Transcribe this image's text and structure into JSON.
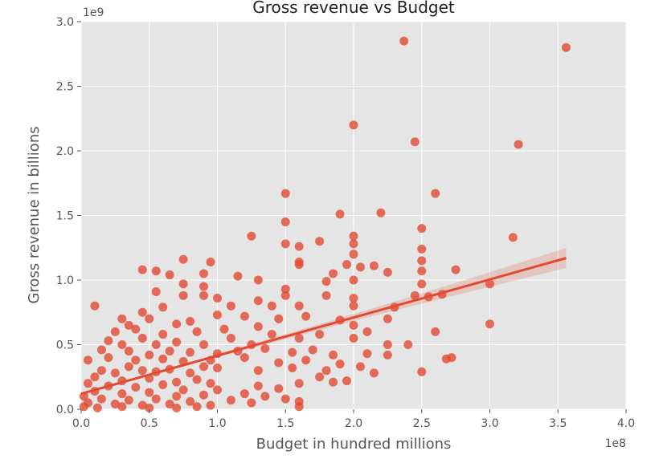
{
  "chart_data": {
    "type": "scatter",
    "title": "Gross revenue vs Budget",
    "xlabel": "Budget in hundred millions",
    "ylabel": "Gross revenue in billions",
    "x_offset_label": "1e8",
    "y_offset_label": "1e9",
    "xlim": [
      0,
      4.0
    ],
    "ylim": [
      0,
      3.0
    ],
    "xticks": [
      "0.0",
      "0.5",
      "1.0",
      "1.5",
      "2.0",
      "2.5",
      "3.0",
      "3.5",
      "4.0"
    ],
    "yticks": [
      "0.0",
      "0.5",
      "1.0",
      "1.5",
      "2.0",
      "2.5",
      "3.0"
    ],
    "grid": true,
    "style": "ggplot",
    "colors": {
      "marker": "#e24a33",
      "background": "#e5e5e5",
      "grid": "#ffffff"
    },
    "series": [
      {
        "points": [
          [
            2.37,
            2.85
          ],
          [
            3.56,
            2.8
          ],
          [
            2.0,
            2.2
          ],
          [
            2.45,
            2.07
          ],
          [
            3.21,
            2.05
          ],
          [
            1.5,
            1.67
          ],
          [
            2.6,
            1.67
          ],
          [
            1.9,
            1.51
          ],
          [
            2.2,
            1.52
          ],
          [
            1.5,
            1.45
          ],
          [
            1.75,
            1.3
          ],
          [
            1.25,
            1.34
          ],
          [
            2.0,
            1.34
          ],
          [
            2.5,
            1.4
          ],
          [
            3.17,
            1.33
          ],
          [
            1.5,
            1.28
          ],
          [
            1.6,
            1.26
          ],
          [
            2.0,
            1.28
          ],
          [
            2.5,
            1.24
          ],
          [
            1.6,
            1.14
          ],
          [
            1.6,
            1.12
          ],
          [
            2.0,
            1.2
          ],
          [
            2.5,
            1.15
          ],
          [
            0.75,
            1.16
          ],
          [
            0.95,
            1.14
          ],
          [
            0.45,
            1.08
          ],
          [
            0.55,
            1.07
          ],
          [
            0.65,
            1.04
          ],
          [
            0.9,
            1.05
          ],
          [
            2.25,
            1.06
          ],
          [
            2.75,
            1.08
          ],
          [
            1.15,
            1.03
          ],
          [
            1.3,
            1.0
          ],
          [
            1.85,
            1.05
          ],
          [
            1.95,
            1.12
          ],
          [
            2.05,
            1.1
          ],
          [
            2.15,
            1.11
          ],
          [
            2.5,
            1.07
          ],
          [
            1.5,
            0.93
          ],
          [
            1.8,
            0.99
          ],
          [
            2.0,
            1.0
          ],
          [
            3.0,
            0.97
          ],
          [
            0.75,
            0.97
          ],
          [
            0.9,
            0.95
          ],
          [
            0.9,
            0.88
          ],
          [
            1.0,
            0.86
          ],
          [
            0.55,
            0.91
          ],
          [
            0.1,
            0.8
          ],
          [
            0.45,
            0.75
          ],
          [
            0.6,
            0.79
          ],
          [
            0.75,
            0.88
          ],
          [
            1.1,
            0.8
          ],
          [
            1.3,
            0.84
          ],
          [
            1.5,
            0.88
          ],
          [
            2.0,
            0.86
          ],
          [
            2.5,
            0.97
          ],
          [
            2.45,
            0.88
          ],
          [
            2.55,
            0.87
          ],
          [
            2.65,
            0.89
          ],
          [
            2.3,
            0.79
          ],
          [
            1.2,
            0.72
          ],
          [
            1.4,
            0.8
          ],
          [
            1.6,
            0.8
          ],
          [
            1.8,
            0.88
          ],
          [
            2.0,
            0.8
          ],
          [
            0.3,
            0.7
          ],
          [
            0.35,
            0.65
          ],
          [
            0.5,
            0.7
          ],
          [
            0.7,
            0.66
          ],
          [
            0.8,
            0.68
          ],
          [
            1.0,
            0.73
          ],
          [
            2.25,
            0.7
          ],
          [
            2.6,
            0.6
          ],
          [
            3.0,
            0.66
          ],
          [
            0.25,
            0.6
          ],
          [
            0.4,
            0.62
          ],
          [
            0.6,
            0.58
          ],
          [
            0.85,
            0.6
          ],
          [
            1.05,
            0.62
          ],
          [
            1.3,
            0.64
          ],
          [
            1.45,
            0.7
          ],
          [
            1.65,
            0.72
          ],
          [
            1.9,
            0.69
          ],
          [
            2.0,
            0.65
          ],
          [
            2.1,
            0.6
          ],
          [
            0.2,
            0.53
          ],
          [
            0.3,
            0.5
          ],
          [
            0.45,
            0.55
          ],
          [
            0.55,
            0.5
          ],
          [
            0.7,
            0.52
          ],
          [
            0.9,
            0.5
          ],
          [
            1.1,
            0.55
          ],
          [
            1.25,
            0.5
          ],
          [
            1.4,
            0.58
          ],
          [
            1.6,
            0.55
          ],
          [
            1.75,
            0.58
          ],
          [
            2.0,
            0.55
          ],
          [
            2.25,
            0.5
          ],
          [
            2.25,
            0.42
          ],
          [
            2.72,
            0.4
          ],
          [
            2.68,
            0.39
          ],
          [
            0.15,
            0.46
          ],
          [
            0.35,
            0.45
          ],
          [
            0.5,
            0.42
          ],
          [
            0.65,
            0.45
          ],
          [
            0.8,
            0.44
          ],
          [
            1.0,
            0.43
          ],
          [
            1.15,
            0.45
          ],
          [
            1.35,
            0.47
          ],
          [
            1.55,
            0.44
          ],
          [
            1.7,
            0.46
          ],
          [
            1.85,
            0.42
          ],
          [
            2.1,
            0.43
          ],
          [
            2.4,
            0.5
          ],
          [
            0.05,
            0.38
          ],
          [
            0.2,
            0.4
          ],
          [
            0.4,
            0.38
          ],
          [
            0.6,
            0.39
          ],
          [
            0.75,
            0.37
          ],
          [
            0.95,
            0.38
          ],
          [
            1.2,
            0.4
          ],
          [
            1.45,
            0.36
          ],
          [
            1.65,
            0.38
          ],
          [
            1.9,
            0.35
          ],
          [
            2.05,
            0.33
          ],
          [
            2.15,
            0.28
          ],
          [
            2.5,
            0.29
          ],
          [
            1.0,
            0.32
          ],
          [
            1.3,
            0.3
          ],
          [
            1.55,
            0.32
          ],
          [
            1.8,
            0.3
          ],
          [
            1.95,
            0.22
          ],
          [
            1.85,
            0.21
          ],
          [
            1.75,
            0.25
          ],
          [
            1.6,
            0.2
          ],
          [
            1.45,
            0.16
          ],
          [
            1.3,
            0.18
          ],
          [
            1.2,
            0.12
          ],
          [
            1.0,
            0.15
          ],
          [
            1.35,
            0.1
          ],
          [
            1.5,
            0.08
          ],
          [
            1.6,
            0.06
          ],
          [
            1.6,
            0.02
          ],
          [
            1.25,
            0.05
          ],
          [
            1.1,
            0.07
          ],
          [
            0.15,
            0.3
          ],
          [
            0.25,
            0.28
          ],
          [
            0.35,
            0.33
          ],
          [
            0.45,
            0.3
          ],
          [
            0.55,
            0.29
          ],
          [
            0.65,
            0.31
          ],
          [
            0.8,
            0.28
          ],
          [
            0.9,
            0.33
          ],
          [
            0.1,
            0.25
          ],
          [
            0.3,
            0.22
          ],
          [
            0.5,
            0.24
          ],
          [
            0.7,
            0.21
          ],
          [
            0.85,
            0.23
          ],
          [
            0.05,
            0.2
          ],
          [
            0.2,
            0.18
          ],
          [
            0.4,
            0.17
          ],
          [
            0.6,
            0.19
          ],
          [
            0.75,
            0.15
          ],
          [
            0.95,
            0.2
          ],
          [
            0.1,
            0.14
          ],
          [
            0.3,
            0.12
          ],
          [
            0.5,
            0.13
          ],
          [
            0.7,
            0.1
          ],
          [
            0.9,
            0.11
          ],
          [
            0.02,
            0.1
          ],
          [
            0.15,
            0.08
          ],
          [
            0.35,
            0.07
          ],
          [
            0.55,
            0.08
          ],
          [
            0.8,
            0.06
          ],
          [
            0.05,
            0.05
          ],
          [
            0.25,
            0.04
          ],
          [
            0.45,
            0.03
          ],
          [
            0.65,
            0.04
          ],
          [
            0.85,
            0.02
          ],
          [
            0.02,
            0.02
          ],
          [
            0.12,
            0.01
          ],
          [
            0.3,
            0.02
          ],
          [
            0.5,
            0.01
          ],
          [
            0.7,
            0.01
          ],
          [
            0.95,
            0.03
          ]
        ]
      }
    ],
    "regression": {
      "x": [
        0.0,
        3.56
      ],
      "y": [
        0.12,
        1.17
      ]
    }
  }
}
